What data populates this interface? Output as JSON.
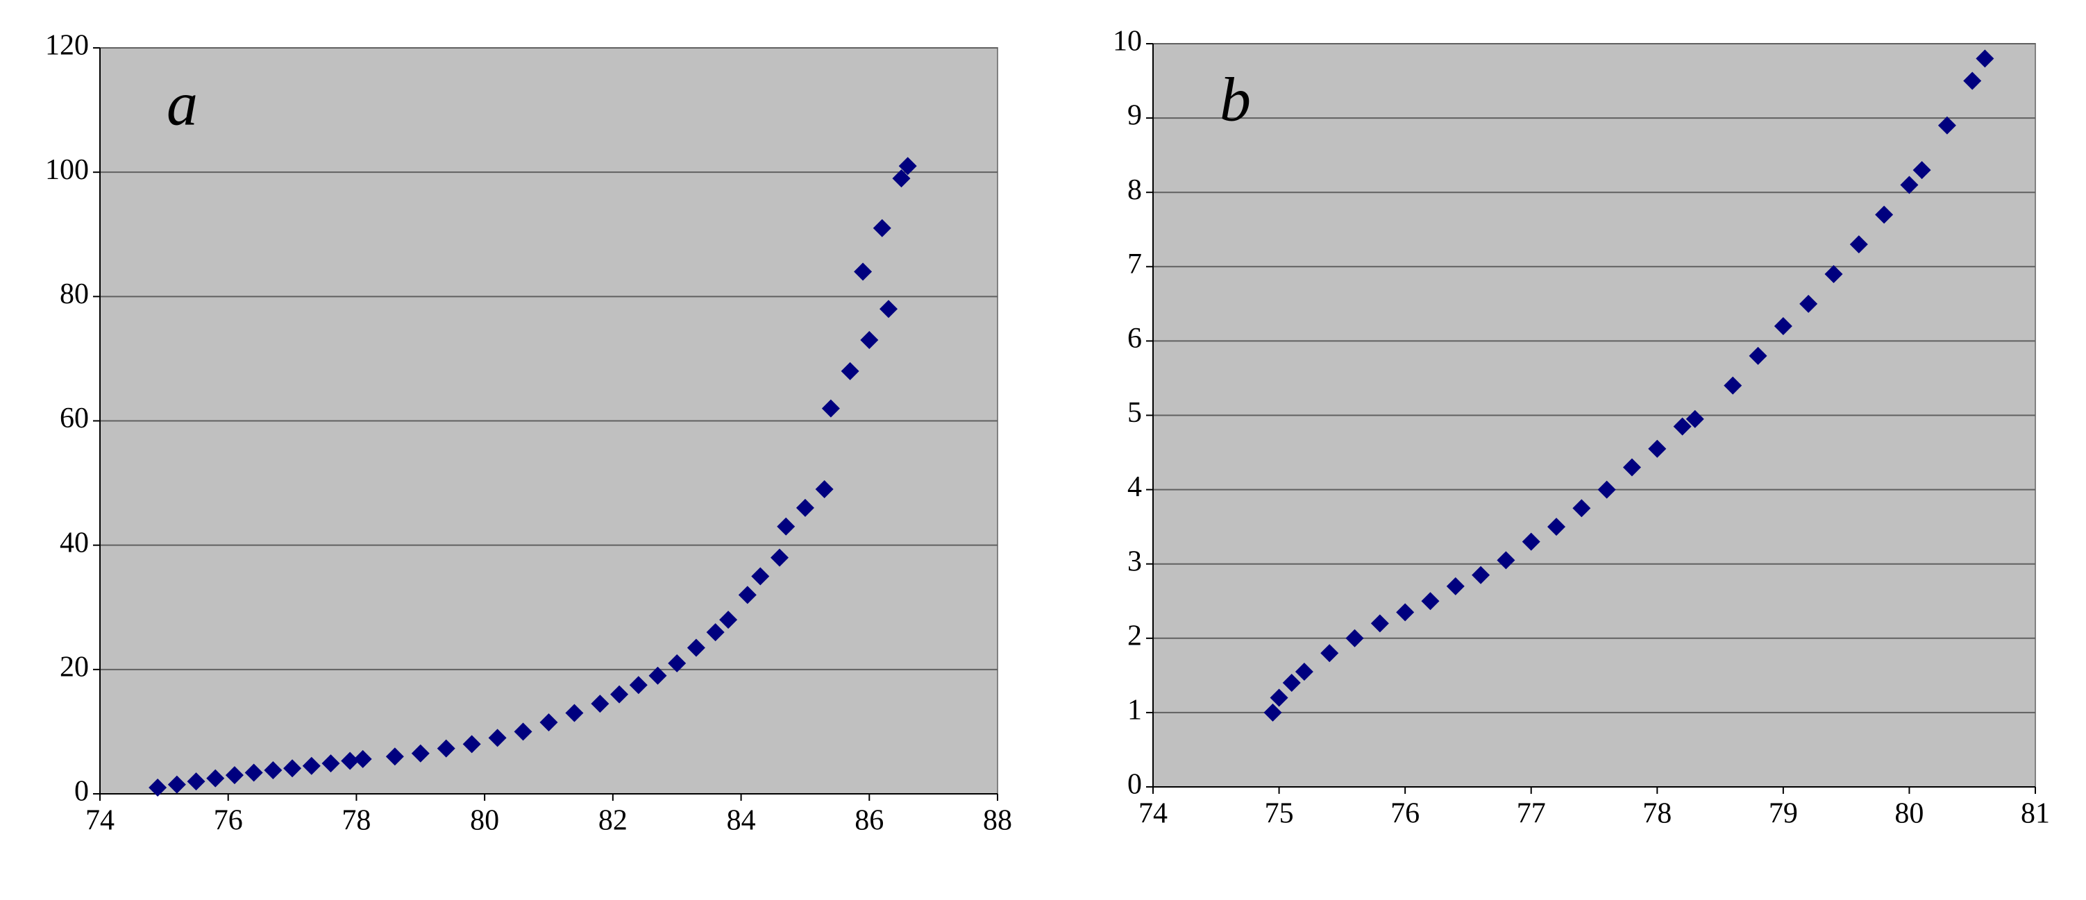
{
  "chart_data": [
    {
      "type": "scatter",
      "annotation": "a",
      "color": "#00007f",
      "background": "#c0c0c0",
      "grid": true,
      "x": [
        74.9,
        75.2,
        75.5,
        75.8,
        76.1,
        76.4,
        76.7,
        77.0,
        77.3,
        77.6,
        77.9,
        78.1,
        78.6,
        79.0,
        79.4,
        79.8,
        80.2,
        80.6,
        81.0,
        81.4,
        81.8,
        82.1,
        82.4,
        82.7,
        83.0,
        83.3,
        83.6,
        83.8,
        84.1,
        84.3,
        84.6,
        84.7,
        85.0,
        85.3,
        85.4,
        85.7,
        86.0,
        86.3,
        85.9,
        86.2,
        86.5,
        86.6
      ],
      "values": [
        1,
        1.5,
        2,
        2.5,
        3,
        3.4,
        3.8,
        4.1,
        4.5,
        4.9,
        5.3,
        5.6,
        6,
        6.5,
        7.3,
        8,
        9,
        10,
        11.5,
        13,
        14.5,
        16,
        17.5,
        19,
        21,
        23.5,
        26,
        28,
        32,
        35,
        38,
        43,
        46,
        49,
        62,
        68,
        73,
        78,
        84,
        91,
        99,
        101
      ],
      "xlim": [
        74,
        88
      ],
      "xticks": [
        74,
        76,
        78,
        80,
        82,
        84,
        86,
        88
      ],
      "ylim": [
        0,
        120
      ],
      "yticks": [
        0,
        20,
        40,
        60,
        80,
        100,
        120
      ]
    },
    {
      "type": "scatter",
      "annotation": "b",
      "color": "#00007f",
      "background": "#c0c0c0",
      "grid": true,
      "x": [
        74.95,
        75.0,
        75.1,
        75.2,
        75.4,
        75.6,
        75.8,
        76.0,
        76.2,
        76.4,
        76.6,
        76.8,
        77.0,
        77.2,
        77.4,
        77.6,
        77.8,
        78.0,
        78.2,
        78.3,
        78.6,
        78.8,
        79.0,
        79.2,
        79.4,
        79.6,
        79.8,
        80.0,
        80.1,
        80.3,
        80.5,
        80.6
      ],
      "values": [
        1,
        1.2,
        1.4,
        1.55,
        1.8,
        2.0,
        2.2,
        2.35,
        2.5,
        2.7,
        2.85,
        3.05,
        3.3,
        3.5,
        3.75,
        4.0,
        4.3,
        4.55,
        4.85,
        4.95,
        5.4,
        5.8,
        6.2,
        6.5,
        6.9,
        7.3,
        7.7,
        8.1,
        8.3,
        8.9,
        9.5,
        9.8
      ],
      "xlim": [
        74,
        81
      ],
      "xticks": [
        74,
        75,
        76,
        77,
        78,
        79,
        80,
        81
      ],
      "ylim": [
        0,
        10
      ],
      "yticks": [
        0,
        1,
        2,
        3,
        4,
        5,
        6,
        7,
        8,
        9,
        10
      ]
    }
  ]
}
